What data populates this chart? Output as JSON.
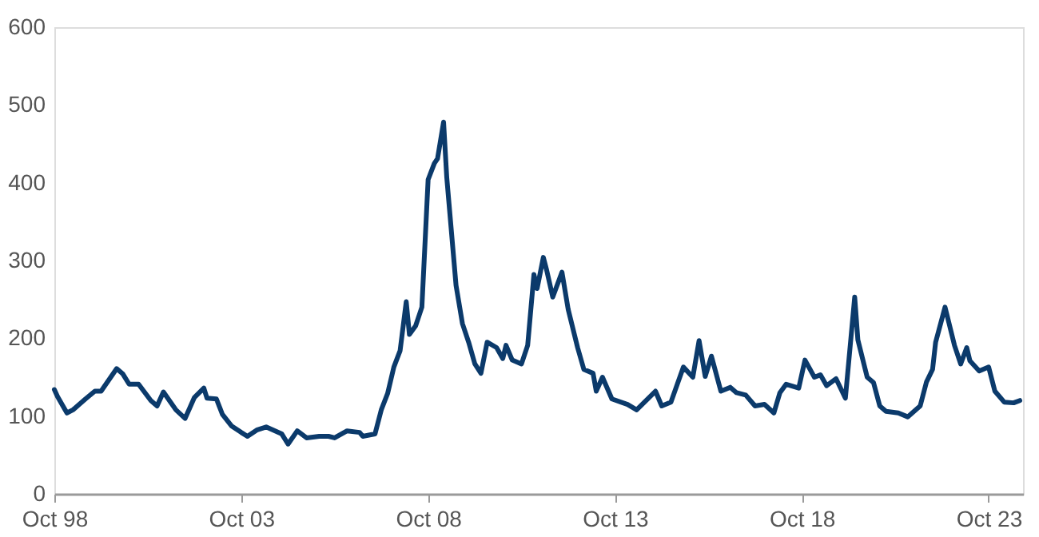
{
  "chart_data": {
    "type": "line",
    "x": [
      "1998-10",
      "1998-11",
      "1999-02",
      "1999-04",
      "1999-08",
      "1999-11",
      "2000-01",
      "2000-06",
      "2000-08",
      "2000-10",
      "2001-01",
      "2001-05",
      "2001-07",
      "2001-09",
      "2002-01",
      "2002-04",
      "2002-07",
      "2002-10",
      "2002-11",
      "2003-02",
      "2003-04",
      "2003-07",
      "2003-10",
      "2003-12",
      "2004-03",
      "2004-06",
      "2004-11",
      "2005-01",
      "2005-04",
      "2005-07",
      "2005-11",
      "2006-02",
      "2006-04",
      "2006-08",
      "2006-12",
      "2007-01",
      "2007-05",
      "2007-07",
      "2007-09",
      "2007-11",
      "2008-01",
      "2008-03",
      "2008-04",
      "2008-06",
      "2008-08",
      "2008-10",
      "2008-12",
      "2009-01",
      "2009-03",
      "2009-04",
      "2009-07",
      "2009-09",
      "2009-11",
      "2010-01",
      "2010-03",
      "2010-05",
      "2010-08",
      "2010-10",
      "2010-11",
      "2011-01",
      "2011-04",
      "2011-06",
      "2011-08",
      "2011-09",
      "2011-11",
      "2011-12",
      "2012-02",
      "2012-05",
      "2012-07",
      "2012-10",
      "2012-12",
      "2013-03",
      "2013-04",
      "2013-06",
      "2013-09",
      "2014-02",
      "2014-05",
      "2014-11",
      "2015-01",
      "2015-04",
      "2015-08",
      "2015-11",
      "2016-01",
      "2016-03",
      "2016-05",
      "2016-08",
      "2016-11",
      "2017-01",
      "2017-04",
      "2017-07",
      "2017-10",
      "2018-01",
      "2018-03",
      "2018-05",
      "2018-09",
      "2018-11",
      "2019-02",
      "2019-04",
      "2019-06",
      "2019-09",
      "2019-12",
      "2020-03",
      "2020-04",
      "2020-07",
      "2020-09",
      "2020-11",
      "2021-01",
      "2021-05",
      "2021-08",
      "2021-12",
      "2022-02",
      "2022-04",
      "2022-05",
      "2022-08",
      "2022-11",
      "2023-01",
      "2023-03",
      "2023-04",
      "2023-07",
      "2023-10",
      "2023-12",
      "2024-03",
      "2024-06",
      "2024-08"
    ],
    "series": [
      {
        "color": "#0b3a6b",
        "values": [
          134,
          125,
          104,
          108,
          122,
          132,
          132,
          161,
          154,
          141,
          141,
          120,
          113,
          131,
          108,
          97,
          124,
          136,
          123,
          122,
          102,
          87,
          79,
          74,
          82,
          86,
          77,
          64,
          81,
          72,
          74,
          74,
          72,
          81,
          79,
          74,
          77,
          108,
          129,
          163,
          184,
          247,
          205,
          216,
          240,
          404,
          425,
          431,
          478,
          407,
          268,
          219,
          195,
          167,
          155,
          195,
          188,
          174,
          191,
          172,
          167,
          191,
          282,
          264,
          304,
          289,
          253,
          285,
          237,
          188,
          160,
          155,
          132,
          150,
          122,
          115,
          108,
          132,
          113,
          118,
          163,
          150,
          197,
          151,
          177,
          132,
          137,
          130,
          127,
          113,
          115,
          104,
          130,
          141,
          136,
          172,
          150,
          153,
          139,
          148,
          123,
          253,
          198,
          150,
          143,
          113,
          106,
          104,
          99,
          113,
          144,
          160,
          195,
          240,
          191,
          167,
          188,
          171,
          158,
          163,
          132,
          118,
          117,
          120
        ]
      }
    ],
    "xlim": [
      "1998-10",
      "2024-09"
    ],
    "xticks": [
      {
        "value": "1998-10",
        "label": "Oct 98"
      },
      {
        "value": "2003-10",
        "label": "Oct 03"
      },
      {
        "value": "2008-10",
        "label": "Oct 08"
      },
      {
        "value": "2013-10",
        "label": "Oct 13"
      },
      {
        "value": "2018-10",
        "label": "Oct 18"
      },
      {
        "value": "2023-10",
        "label": "Oct 23"
      }
    ],
    "ylim": [
      0,
      600
    ],
    "yticks": [
      0,
      100,
      200,
      300,
      400,
      500,
      600
    ],
    "grid": false,
    "line_style": "solid",
    "marker": "none"
  }
}
